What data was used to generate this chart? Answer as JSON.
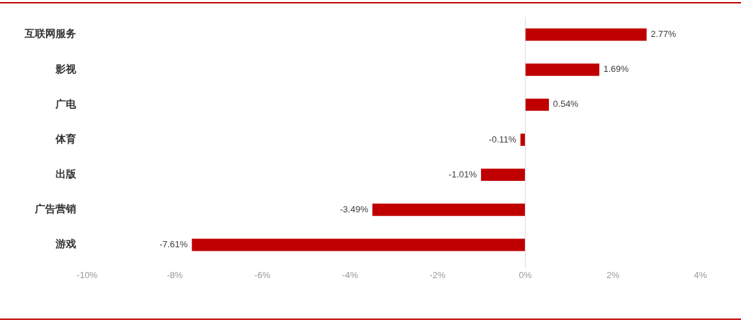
{
  "chart_data": {
    "type": "bar",
    "orientation": "horizontal",
    "categories": [
      "互联网服务",
      "影视",
      "广电",
      "体育",
      "出版",
      "广告营销",
      "游戏"
    ],
    "values": [
      2.77,
      1.69,
      0.54,
      -0.11,
      -1.01,
      -3.49,
      -7.61
    ],
    "value_labels": [
      "2.77%",
      "1.69%",
      "0.54%",
      "-0.11%",
      "-1.01%",
      "-3.49%",
      "-7.61%"
    ],
    "color": "#c00000",
    "xlim": [
      -10,
      4
    ],
    "xticks": [
      {
        "value": -10,
        "label": "-10%"
      },
      {
        "value": -8,
        "label": "-8%"
      },
      {
        "value": -6,
        "label": "-6%"
      },
      {
        "value": -4,
        "label": "-4%"
      },
      {
        "value": -2,
        "label": "-2%"
      },
      {
        "value": 0,
        "label": "0%"
      },
      {
        "value": 2,
        "label": "2%"
      },
      {
        "value": 4,
        "label": "4%"
      }
    ],
    "ref_lines": [
      {
        "axis": "x",
        "value": 0,
        "color": "#d9d9d9"
      }
    ],
    "legend": false
  }
}
